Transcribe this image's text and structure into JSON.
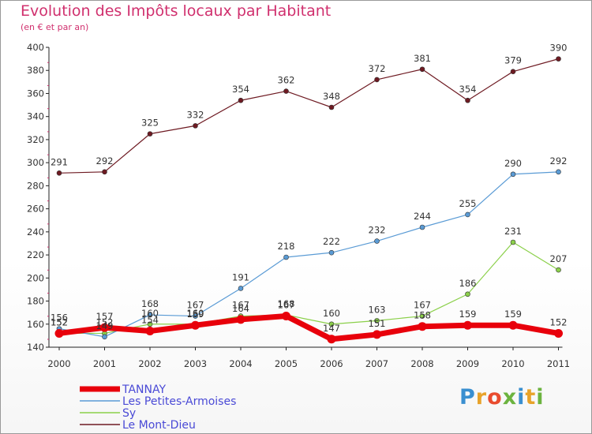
{
  "header": {
    "title": "Evolution des Impôts locaux par Habitant",
    "subtitle": "(en € et par an)"
  },
  "logo": {
    "letters": [
      "P",
      "r",
      "o",
      "x",
      "i",
      "t",
      "i"
    ],
    "colors": [
      "#3a8fd0",
      "#e8a32a",
      "#e94c2f",
      "#6cb33f",
      "#3a8fd0",
      "#e8a32a",
      "#6cb33f"
    ]
  },
  "chart_data": {
    "type": "line",
    "title": "Evolution des Impôts locaux par Habitant",
    "subtitle": "(en € et par an)",
    "x": [
      "2000",
      "2001",
      "2002",
      "2003",
      "2004",
      "2005",
      "2006",
      "2007",
      "2008",
      "2009",
      "2010",
      "2011"
    ],
    "ylim": [
      140,
      400
    ],
    "yticks": [
      140,
      160,
      180,
      200,
      220,
      240,
      260,
      280,
      300,
      320,
      340,
      360,
      380,
      400
    ],
    "grid": false,
    "legend_position": "bottom-left",
    "series": [
      {
        "name": "TANNAY",
        "color": "#e8000b",
        "values": [
          152,
          157,
          154,
          159,
          164,
          167,
          147,
          151,
          158,
          159,
          159,
          152
        ]
      },
      {
        "name": "Les Petites-Armoises",
        "color": "#5a9bd5",
        "values": [
          156,
          149,
          168,
          167,
          191,
          218,
          222,
          232,
          244,
          255,
          290,
          292
        ]
      },
      {
        "name": "Sy",
        "color": "#8bd04a",
        "values": [
          152,
          152,
          160,
          160,
          167,
          168,
          160,
          163,
          167,
          186,
          231,
          207
        ]
      },
      {
        "name": "Le Mont-Dieu",
        "color": "#6e1a22",
        "values": [
          291,
          292,
          325,
          332,
          354,
          362,
          348,
          372,
          381,
          354,
          379,
          390
        ]
      }
    ]
  }
}
